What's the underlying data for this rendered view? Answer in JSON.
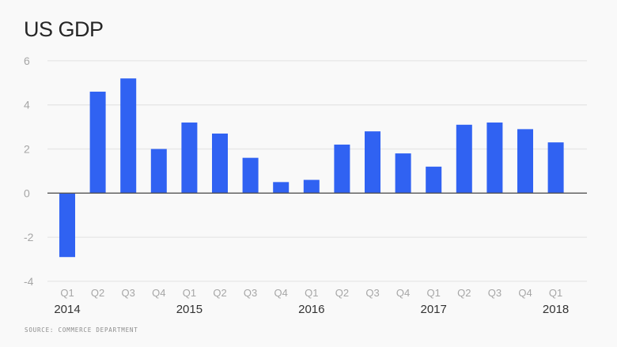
{
  "chart_data": {
    "type": "bar",
    "title": "US GDP",
    "source": "SOURCE: COMMERCE DEPARTMENT",
    "categories": [
      "Q1",
      "Q2",
      "Q3",
      "Q4",
      "Q1",
      "Q2",
      "Q3",
      "Q4",
      "Q1",
      "Q2",
      "Q3",
      "Q4",
      "Q1",
      "Q2",
      "Q3",
      "Q4",
      "Q1"
    ],
    "years": [
      {
        "label": "2014",
        "index": 0
      },
      {
        "label": "2015",
        "index": 4
      },
      {
        "label": "2016",
        "index": 8
      },
      {
        "label": "2017",
        "index": 12
      },
      {
        "label": "2018",
        "index": 16
      }
    ],
    "values": [
      -2.9,
      4.6,
      5.2,
      2.0,
      3.2,
      2.7,
      1.6,
      0.5,
      0.6,
      2.2,
      2.8,
      1.8,
      1.2,
      3.1,
      3.2,
      2.9,
      2.3
    ],
    "ylim": [
      -4,
      6
    ],
    "yticks": [
      6,
      4,
      2,
      0,
      -2,
      -4
    ],
    "grid": true,
    "xlabel": "",
    "ylabel": "",
    "colors": {
      "bar": "#3062f2",
      "grid": "#e6e6e6",
      "zero": "#555555"
    }
  }
}
